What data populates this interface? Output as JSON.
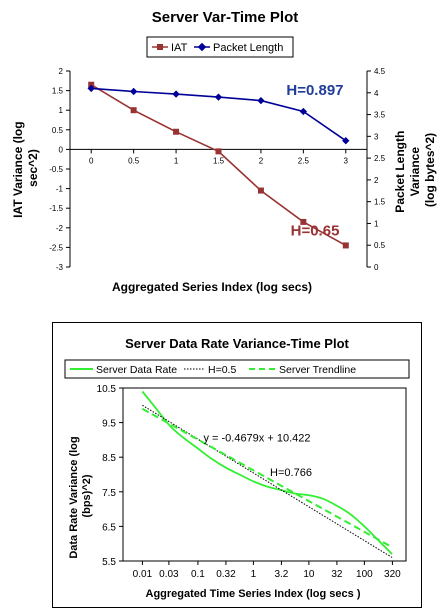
{
  "chart_data": [
    {
      "type": "line",
      "title": "Server Var-Time Plot",
      "xlabel": "Aggregated Series Index (log secs)",
      "ylabel": "IAT Variance (log sec^2)",
      "y2label_lines": [
        "Packet Length",
        "Variance",
        "(log bytes^2)"
      ],
      "ylabel_lines": [
        "IAT Variance (log",
        "sec^2)"
      ],
      "x_ticks": [
        "0",
        "0.5",
        "1",
        "1.5",
        "2",
        "2.5",
        "3"
      ],
      "x_tick_values": [
        0,
        0.5,
        1,
        1.5,
        2,
        2.5,
        3
      ],
      "xlim": [
        -0.25,
        3.25
      ],
      "ylim": [
        -3,
        2
      ],
      "y_ticks": [
        "-3",
        "-2.5",
        "-2",
        "-1.5",
        "-1",
        "-0.5",
        "0",
        "0.5",
        "1",
        "1.5",
        "2"
      ],
      "y_tick_values": [
        -3,
        -2.5,
        -2,
        -1.5,
        -1,
        -0.5,
        0,
        0.5,
        1,
        1.5,
        2
      ],
      "y2lim": [
        0,
        4.5
      ],
      "y2_ticks": [
        "0",
        "0.5",
        "1",
        "1.5",
        "2",
        "2.5",
        "3",
        "3.5",
        "4",
        "4.5"
      ],
      "y2_tick_values": [
        0,
        0.5,
        1,
        1.5,
        2,
        2.5,
        3,
        3.5,
        4,
        4.5
      ],
      "legend_position": "top",
      "grid": false,
      "series": [
        {
          "name": "IAT",
          "axis": "left",
          "color": "#993333",
          "marker": "square",
          "x": [
            0,
            0.5,
            1,
            1.5,
            2,
            2.5,
            3
          ],
          "y": [
            1.65,
            1.0,
            0.45,
            -0.05,
            -1.05,
            -1.85,
            -2.45
          ]
        },
        {
          "name": "Packet Length",
          "axis": "right",
          "color": "#000099",
          "marker": "diamond",
          "x": [
            0,
            0.5,
            1,
            1.5,
            2,
            2.5,
            3
          ],
          "y": [
            4.1,
            4.03,
            3.97,
            3.9,
            3.82,
            3.57,
            2.9
          ]
        }
      ],
      "annotations": [
        {
          "text": "H=0.897",
          "color": "#1f3d99",
          "x": 2.3,
          "y2": 3.95
        },
        {
          "text": "H=0.65",
          "color": "#993333",
          "x": 2.35,
          "y": -2.2
        }
      ]
    },
    {
      "type": "line",
      "title": "Server Data Rate Variance-Time Plot",
      "xlabel": "Aggregated Time Series Index (log secs )",
      "ylabel_lines": [
        "Data Rate Variance (log",
        "(bps)^2)"
      ],
      "x_ticks": [
        "0.01",
        "0.03",
        "0.1",
        "0.32",
        "1",
        "3.2",
        "10",
        "32",
        "100",
        "320"
      ],
      "x_log10": [
        -2,
        -1.523,
        -1,
        -0.495,
        0,
        0.505,
        1,
        1.505,
        2,
        2.505
      ],
      "xlim_log10": [
        -2.35,
        2.75
      ],
      "ylim": [
        5.5,
        10.5
      ],
      "y_ticks": [
        "5.5",
        "6.5",
        "7.5",
        "8.5",
        "9.5",
        "10.5"
      ],
      "y_tick_values": [
        5.5,
        6.5,
        7.5,
        8.5,
        9.5,
        10.5
      ],
      "legend_position": "top",
      "grid": false,
      "series": [
        {
          "name": "Server Data Rate",
          "style": "solid",
          "color": "#33ee33",
          "x_log10": [
            -2,
            -1.75,
            -1.5,
            -1.25,
            -1,
            -0.75,
            -0.5,
            -0.25,
            0,
            0.25,
            0.5,
            0.75,
            1,
            1.25,
            1.5,
            1.75,
            2,
            2.25,
            2.5
          ],
          "y": [
            10.4,
            9.9,
            9.4,
            9.05,
            8.75,
            8.45,
            8.2,
            8.0,
            7.8,
            7.65,
            7.55,
            7.45,
            7.4,
            7.3,
            7.1,
            6.85,
            6.5,
            6.1,
            5.7
          ]
        },
        {
          "name": "H=0.5",
          "style": "dotted",
          "color": "#000000",
          "x_log10": [
            -2,
            2.5
          ],
          "y": [
            10.0,
            5.6
          ]
        },
        {
          "name": "Server Trendline",
          "style": "dashed",
          "color": "#33ee33",
          "x_log10": [
            -2,
            2.5
          ],
          "y": [
            9.9,
            5.9
          ]
        }
      ],
      "annotations": [
        {
          "text": "y = -0.4679x + 10.422",
          "color": "#000000",
          "x_log10": -0.9,
          "y": 8.95
        },
        {
          "text": "H=0.766",
          "color": "#000000",
          "x_log10": 0.3,
          "y": 7.95
        }
      ]
    }
  ]
}
